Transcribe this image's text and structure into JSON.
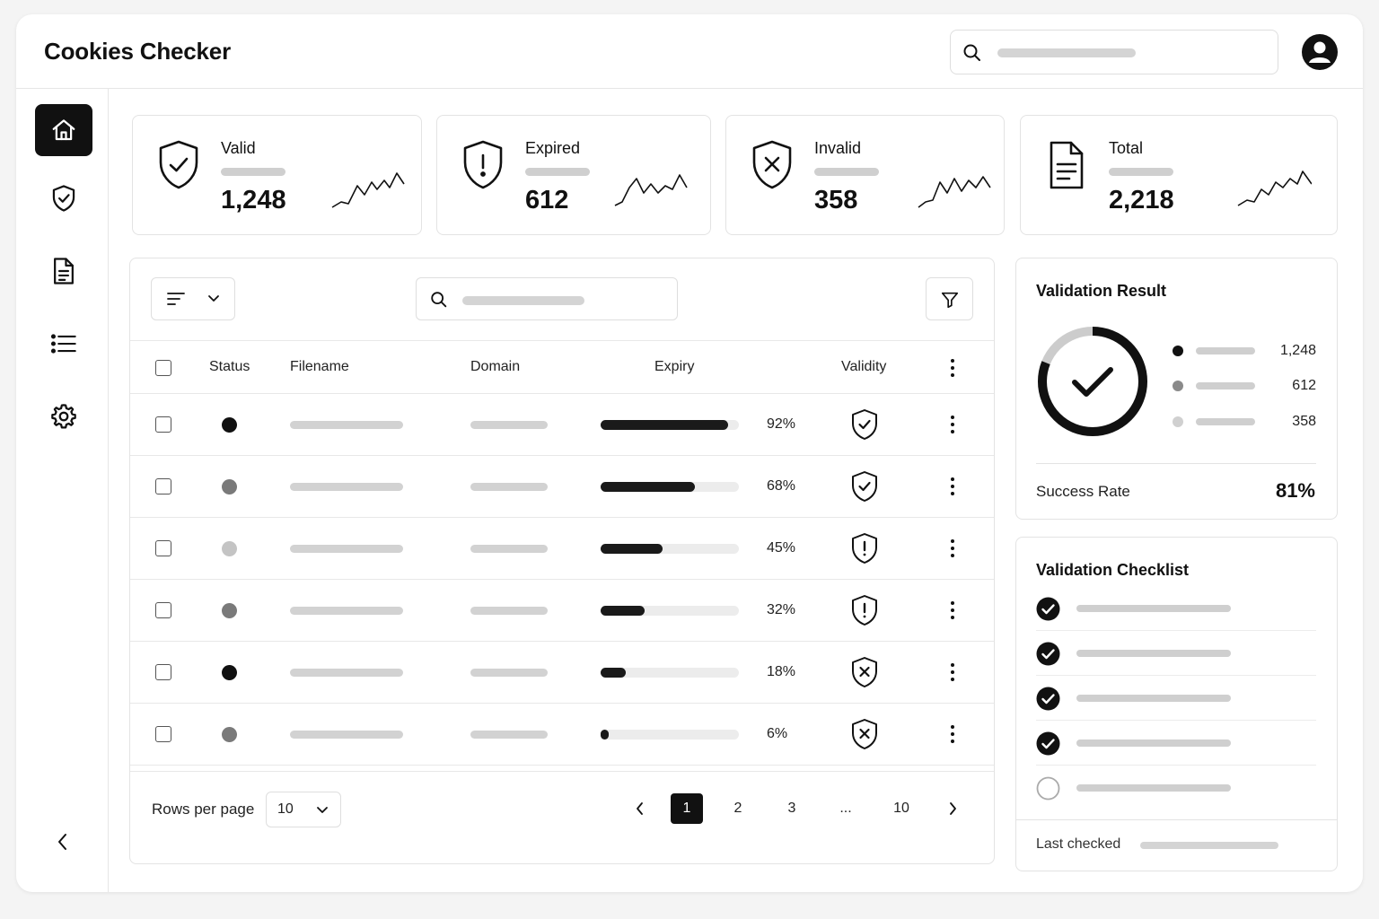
{
  "app": {
    "title": "Cookies Checker"
  },
  "header": {
    "search_icon": "search-icon",
    "avatar_icon": "user-avatar-icon"
  },
  "sidebar": {
    "items": [
      {
        "name": "home",
        "icon": "home-icon",
        "active": true
      },
      {
        "name": "shield",
        "icon": "shield-check-icon",
        "active": false
      },
      {
        "name": "documents",
        "icon": "document-icon",
        "active": false
      },
      {
        "name": "list",
        "icon": "list-icon",
        "active": false
      },
      {
        "name": "settings",
        "icon": "gear-icon",
        "active": false
      }
    ],
    "collapse_icon": "chevron-left-icon"
  },
  "stats": [
    {
      "label": "Valid",
      "value": "1,248",
      "icon": "shield-check-icon"
    },
    {
      "label": "Expired",
      "value": "612",
      "icon": "shield-alert-icon"
    },
    {
      "label": "Invalid",
      "value": "358",
      "icon": "shield-x-icon"
    },
    {
      "label": "Total",
      "value": "2,218",
      "icon": "document-icon"
    }
  ],
  "table": {
    "columns": {
      "status": "Status",
      "filename": "Filename",
      "domain": "Domain",
      "expiry": "Expiry",
      "validity": "Validity"
    },
    "rows": [
      {
        "status_color": "#111111",
        "expiry_pct": 92,
        "expiry_label": "92%",
        "validity": "valid"
      },
      {
        "status_color": "#7a7a7a",
        "expiry_pct": 68,
        "expiry_label": "68%",
        "validity": "valid"
      },
      {
        "status_color": "#c4c4c4",
        "expiry_pct": 45,
        "expiry_label": "45%",
        "validity": "expired"
      },
      {
        "status_color": "#7a7a7a",
        "expiry_pct": 32,
        "expiry_label": "32%",
        "validity": "expired"
      },
      {
        "status_color": "#111111",
        "expiry_pct": 18,
        "expiry_label": "18%",
        "validity": "invalid"
      },
      {
        "status_color": "#7a7a7a",
        "expiry_pct": 6,
        "expiry_label": "6%",
        "validity": "invalid"
      }
    ],
    "pagination": {
      "rows_per_page_label": "Rows per page",
      "rows_per_page_value": "10",
      "pages": [
        "1",
        "2",
        "3",
        "...",
        "10"
      ],
      "current": "1"
    }
  },
  "validation_result": {
    "title": "Validation Result",
    "donut_fraction": 0.81,
    "legend": [
      {
        "value": "1,248",
        "color": "#111111"
      },
      {
        "value": "612",
        "color": "#8a8a8a"
      },
      {
        "value": "358",
        "color": "#d0d0d0"
      }
    ],
    "success_label": "Success Rate",
    "success_value": "81%"
  },
  "validation_checklist": {
    "title": "Validation Checklist",
    "items": [
      {
        "checked": true
      },
      {
        "checked": true
      },
      {
        "checked": true
      },
      {
        "checked": true
      },
      {
        "checked": false
      }
    ],
    "last_checked_label": "Last checked"
  }
}
